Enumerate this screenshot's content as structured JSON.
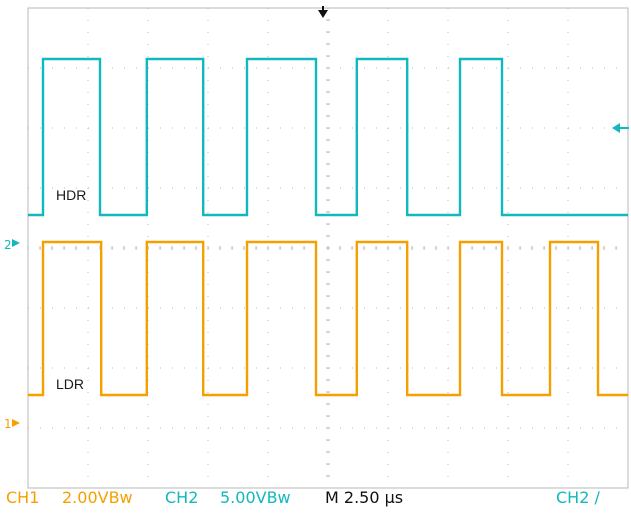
{
  "colors": {
    "ch1": "#f5a000",
    "ch2": "#12b8be",
    "grid": "#b8b8b8",
    "background": "#ffffff"
  },
  "chart_data": {
    "type": "line",
    "grid": true,
    "x_divisions": 10,
    "y_divisions": 8,
    "timebase_us_per_div": 2.5,
    "x_range_div": [
      0,
      10
    ],
    "series": [
      {
        "name": "HDR",
        "channel": "CH2",
        "color": "#12b8be",
        "high_div": 7.15,
        "low_div": 4.55,
        "edges_div": [
          0.25,
          1.2,
          1.98,
          2.92,
          3.65,
          4.8,
          5.48,
          6.32,
          7.2,
          7.9
        ]
      },
      {
        "name": "LDR",
        "channel": "CH1",
        "color": "#f5a000",
        "high_div": 4.1,
        "low_div": 1.55,
        "edges_div": [
          0.25,
          1.22,
          1.98,
          2.92,
          3.65,
          4.8,
          5.48,
          6.32,
          7.2,
          7.9,
          8.7,
          9.5
        ]
      }
    ]
  },
  "markers": {
    "ch2_ground": "2",
    "ch1_ground": "1",
    "trigger_top": "↓",
    "trigger_level": "←"
  },
  "status": {
    "ch1": "CH1",
    "ch1_scale": "2.00VBw",
    "ch2": "CH2",
    "ch2_scale": "5.00VBw",
    "timebase": "M 2.50 µs",
    "trigger": "CH2 ∕"
  }
}
